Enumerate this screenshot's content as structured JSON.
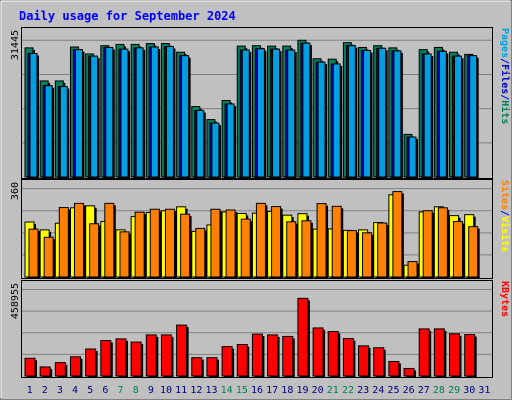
{
  "chart_data": {
    "type": "bar",
    "title": "Daily usage for September 2024",
    "x": [
      "1",
      "2",
      "3",
      "4",
      "5",
      "6",
      "7",
      "8",
      "9",
      "10",
      "11",
      "12",
      "13",
      "14",
      "15",
      "16",
      "17",
      "18",
      "19",
      "20",
      "21",
      "22",
      "23",
      "24",
      "25",
      "26",
      "27",
      "28",
      "29",
      "30",
      "31"
    ],
    "weekend_days": [
      "7",
      "8",
      "14",
      "15",
      "21",
      "22",
      "28",
      "29"
    ],
    "panels": [
      {
        "name": "hits-files-pages",
        "ylabel": [
          "Pages",
          "/",
          "Files",
          "/",
          "Hits"
        ],
        "ylabel_colors": [
          "#00a0e0",
          "#0000ff",
          "#0000c0",
          "#0000ff",
          "#00805c"
        ],
        "ymax_label": "31445",
        "ymax": 31445,
        "series": [
          {
            "name": "Hits",
            "color": "#00805c",
            "values": [
              29700,
              22100,
              22100,
              29900,
              28300,
              30200,
              30500,
              30500,
              30700,
              30700,
              28700,
              16200,
              13200,
              17600,
              30100,
              30200,
              30100,
              30100,
              31445,
              27200,
              27100,
              30900,
              29800,
              30200,
              29700,
              9800,
              29300,
              29800,
              28700,
              28200,
              0
            ]
          },
          {
            "name": "Files",
            "color": "#0000c0",
            "values": [
              28400,
              21000,
              20800,
              29300,
              27800,
              29800,
              29400,
              29700,
              29900,
              30000,
              27900,
              15300,
              12400,
              16800,
              29200,
              29500,
              29400,
              29200,
              30800,
              26400,
              26000,
              30200,
              29100,
              29600,
              29000,
              9200,
              28300,
              28900,
              27800,
              27900,
              0
            ]
          },
          {
            "name": "Pages",
            "color": "#00a0e0",
            "values": [
              28400,
              21000,
              20800,
              29300,
              27800,
              29800,
              29400,
              29700,
              29900,
              30000,
              27900,
              15300,
              12400,
              16800,
              29200,
              29500,
              29400,
              29200,
              30800,
              26400,
              26000,
              30200,
              29100,
              29600,
              29000,
              9200,
              28300,
              28900,
              27800,
              27900,
              0
            ]
          }
        ]
      },
      {
        "name": "visits-sites",
        "ylabel": [
          "Sites",
          "/",
          "Visits"
        ],
        "ylabel_colors": [
          "#ff8000",
          "#0000ff",
          "#ffff00"
        ],
        "ymax_label": "360",
        "ymax": 360,
        "series": [
          {
            "name": "Visits",
            "color": "#ffff00",
            "values": [
              224,
              192,
              219,
              282,
              290,
              226,
              192,
              246,
              263,
              270,
              286,
              186,
              212,
              265,
              259,
              260,
              267,
              252,
              258,
              195,
              196,
              190,
              192,
              222,
              335,
              48,
              265,
              286,
              250,
              254,
              0
            ]
          },
          {
            "name": "Sites",
            "color": "#ff8000",
            "values": [
              195,
              162,
              283,
              300,
              217,
              300,
              184,
              264,
              276,
              276,
              256,
              198,
              276,
              273,
              236,
              300,
              287,
              225,
              229,
              299,
              288,
              189,
              180,
              220,
              348,
              63,
              270,
              282,
              226,
              205,
              0
            ]
          }
        ]
      },
      {
        "name": "kbytes",
        "ylabel": [
          "KBytes"
        ],
        "ylabel_colors": [
          "#ff0000"
        ],
        "ymax_label": "458955",
        "ymax": 458955,
        "series": [
          {
            "name": "KBytes",
            "color": "#ff0000",
            "values": [
              94000,
              48000,
              71000,
              102000,
              143000,
              188000,
              197000,
              180000,
              218000,
              218000,
              270000,
              97000,
              97000,
              156000,
              167000,
              222000,
              218000,
              210000,
              412000,
              255000,
              236000,
              199000,
              160000,
              150000,
              77000,
              40000,
              250000,
              250000,
              224000,
              220000,
              0
            ]
          }
        ]
      }
    ]
  }
}
